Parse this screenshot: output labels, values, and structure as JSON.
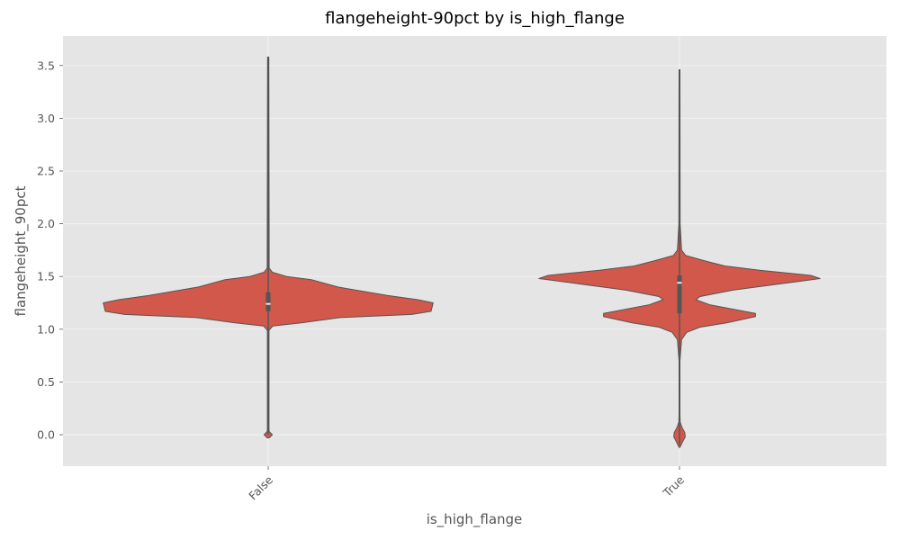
{
  "chart_data": {
    "type": "violin",
    "title": "flangeheight-90pct by is_high_flange",
    "xlabel": "is_high_flange",
    "ylabel": "flangeheight_90pct",
    "ylim": [
      -0.3,
      3.75
    ],
    "yticks": [
      0.0,
      0.5,
      1.0,
      1.5,
      2.0,
      2.5,
      3.0,
      3.5
    ],
    "ytick_labels": [
      "0.0",
      "0.5",
      "1.0",
      "1.5",
      "2.0",
      "2.5",
      "3.0",
      "3.5"
    ],
    "categories": [
      "False",
      "True"
    ],
    "grid": true,
    "colors": {
      "violin_fill": "#d1584a",
      "violin_edge": "#555555",
      "box": "#555555",
      "median": "#e8e8e8",
      "background": "#e5e5e5",
      "grid": "#f2f2f2"
    },
    "series": [
      {
        "category": "False",
        "min": 0.0,
        "max": 3.58,
        "q1": 1.17,
        "median": 1.24,
        "q3": 1.35,
        "density": [
          [
            -0.03,
            0.005
          ],
          [
            0.0,
            0.02
          ],
          [
            0.03,
            0.005
          ],
          [
            0.05,
            0.004
          ],
          [
            0.99,
            0.004
          ],
          [
            1.03,
            0.022
          ],
          [
            1.06,
            0.16
          ],
          [
            1.11,
            0.35
          ],
          [
            1.14,
            0.7
          ],
          [
            1.17,
            0.794
          ],
          [
            1.25,
            0.804
          ],
          [
            1.28,
            0.73
          ],
          [
            1.32,
            0.58
          ],
          [
            1.4,
            0.34
          ],
          [
            1.47,
            0.21
          ],
          [
            1.5,
            0.09
          ],
          [
            1.54,
            0.02
          ],
          [
            1.58,
            0.005
          ],
          [
            3.58,
            0.003
          ]
        ]
      },
      {
        "category": "True",
        "min": -0.1,
        "max": 3.46,
        "q1": 1.15,
        "median": 1.44,
        "q3": 1.51,
        "density": [
          [
            -0.12,
            0.002
          ],
          [
            -0.08,
            0.012
          ],
          [
            -0.02,
            0.028
          ],
          [
            0.02,
            0.026
          ],
          [
            0.07,
            0.012
          ],
          [
            0.12,
            0.003
          ],
          [
            0.2,
            0.002
          ],
          [
            0.7,
            0.002
          ],
          [
            0.9,
            0.01
          ],
          [
            0.97,
            0.035
          ],
          [
            1.02,
            0.1
          ],
          [
            1.06,
            0.23
          ],
          [
            1.12,
            0.37
          ],
          [
            1.15,
            0.37
          ],
          [
            1.23,
            0.15
          ],
          [
            1.28,
            0.08
          ],
          [
            1.31,
            0.1
          ],
          [
            1.37,
            0.26
          ],
          [
            1.42,
            0.45
          ],
          [
            1.48,
            0.685
          ],
          [
            1.51,
            0.64
          ],
          [
            1.56,
            0.39
          ],
          [
            1.6,
            0.22
          ],
          [
            1.65,
            0.12
          ],
          [
            1.7,
            0.03
          ],
          [
            1.75,
            0.01
          ],
          [
            2.0,
            0.003
          ],
          [
            3.46,
            0.002
          ]
        ]
      }
    ]
  }
}
